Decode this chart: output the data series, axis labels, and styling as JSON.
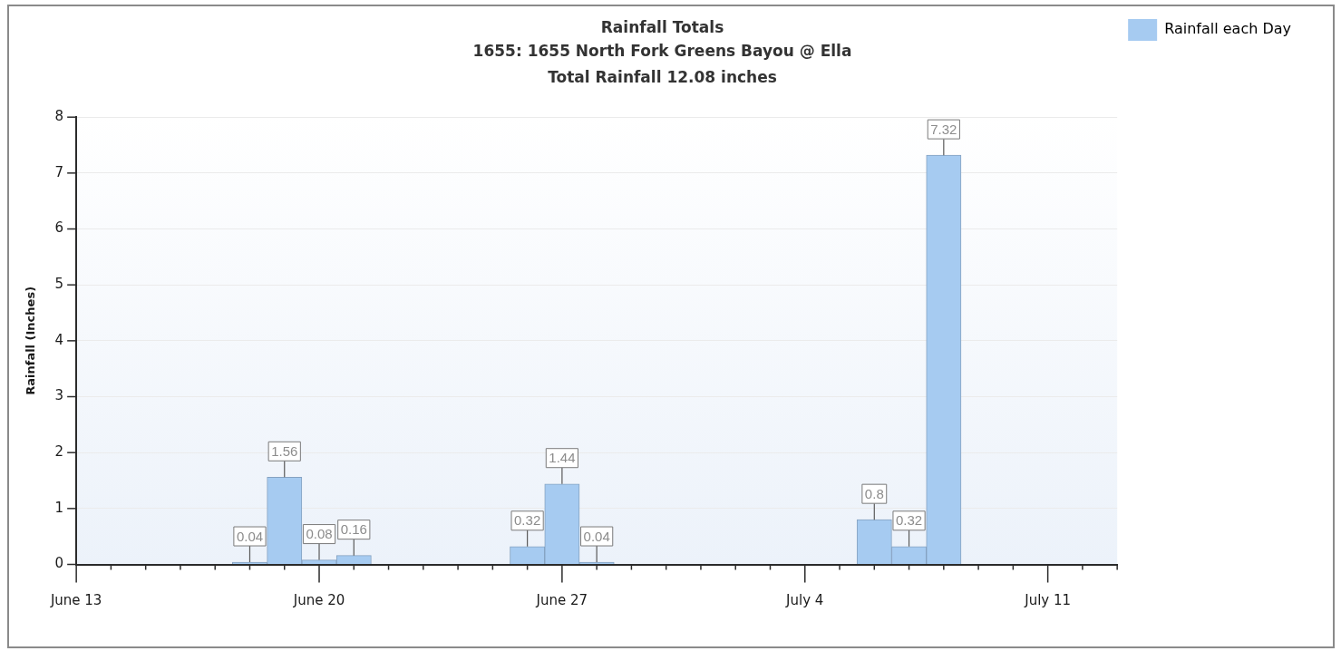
{
  "chart_data": {
    "type": "bar",
    "title": "Rainfall Totals",
    "subtitle": "1655: 1655 North Fork Greens Bayou @ Ella",
    "annotations": [
      "Total Rainfall 12.08 inches"
    ],
    "ylabel": "Rainfall (Inches)",
    "x": [
      "--06-18",
      "--06-19",
      "--06-20",
      "--06-21",
      "--06-26",
      "--06-27",
      "--06-28",
      "--07-06",
      "--07-07",
      "--07-08"
    ],
    "series": [
      {
        "name": "Rainfall each Day",
        "color": "#a6cbf1",
        "values": [
          0.04,
          1.56,
          0.08,
          0.16,
          0.32,
          1.44,
          0.04,
          0.8,
          0.32,
          7.32
        ]
      }
    ],
    "data_labels": true,
    "xlim": [
      "--06-13",
      "--07-13"
    ],
    "xticks": [
      {
        "value": "--06-13",
        "label": "June 13"
      },
      {
        "value": "--06-14",
        "label": null
      },
      {
        "value": "--06-15",
        "label": null
      },
      {
        "value": "--06-16",
        "label": null
      },
      {
        "value": "--06-17",
        "label": null
      },
      {
        "value": "--06-18",
        "label": null
      },
      {
        "value": "--06-19",
        "label": null
      },
      {
        "value": "--06-20",
        "label": "June 20"
      },
      {
        "value": "--06-21",
        "label": null
      },
      {
        "value": "--06-22",
        "label": null
      },
      {
        "value": "--06-23",
        "label": null
      },
      {
        "value": "--06-24",
        "label": null
      },
      {
        "value": "--06-25",
        "label": null
      },
      {
        "value": "--06-26",
        "label": null
      },
      {
        "value": "--06-27",
        "label": "June 27"
      },
      {
        "value": "--06-28",
        "label": null
      },
      {
        "value": "--06-29",
        "label": null
      },
      {
        "value": "--06-30",
        "label": null
      },
      {
        "value": "--07-01",
        "label": null
      },
      {
        "value": "--07-02",
        "label": null
      },
      {
        "value": "--07-03",
        "label": null
      },
      {
        "value": "--07-04",
        "label": "July 4"
      },
      {
        "value": "--07-05",
        "label": null
      },
      {
        "value": "--07-06",
        "label": null
      },
      {
        "value": "--07-07",
        "label": null
      },
      {
        "value": "--07-08",
        "label": null
      },
      {
        "value": "--07-09",
        "label": null
      },
      {
        "value": "--07-10",
        "label": null
      },
      {
        "value": "--07-11",
        "label": "July 11"
      },
      {
        "value": "--07-12",
        "label": null
      },
      {
        "value": "--07-13",
        "label": null
      }
    ],
    "ylim": [
      0,
      8
    ],
    "yticks": [
      0,
      1,
      2,
      3,
      4,
      5,
      6,
      7,
      8
    ],
    "grid": "y",
    "legend": "top right"
  }
}
